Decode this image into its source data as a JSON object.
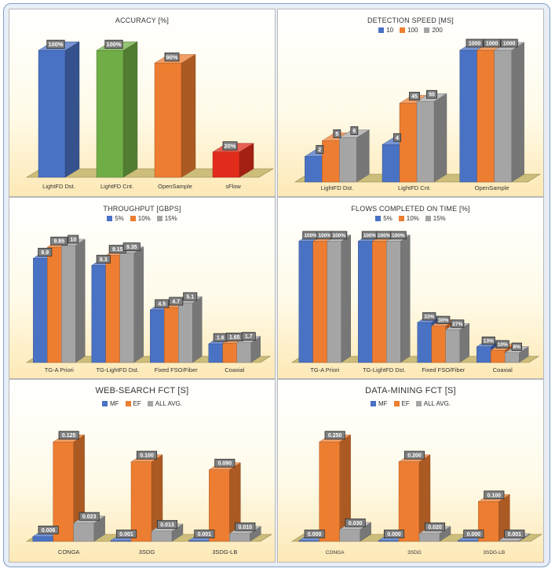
{
  "colors": {
    "blue": "#4a72c4",
    "orange": "#ed7d31",
    "gray": "#a5a5a5",
    "green": "#70ad47",
    "red": "#e22c1b"
  },
  "chart_data": [
    {
      "id": "accuracy",
      "type": "bar",
      "title": "ACCURACY [%]",
      "categories": [
        "LightFD Dst.",
        "LightFD Cnt.",
        "OpenSample",
        "sFlow"
      ],
      "values": [
        100,
        100,
        90,
        20
      ],
      "labels": [
        "100%",
        "100%",
        "90%",
        "20%"
      ],
      "bar_colors": [
        "blue",
        "green",
        "orange",
        "red"
      ],
      "ylim": [
        0,
        110
      ],
      "legend": []
    },
    {
      "id": "detection-speed",
      "type": "bar",
      "title": "DETECTION SPEED [MS]",
      "categories": [
        "LightFD Dst.",
        "LightFD Cnt.",
        "OpenSample"
      ],
      "series": [
        {
          "name": "10",
          "values": [
            2,
            4,
            1000
          ],
          "labels": [
            "2",
            "4",
            "1000"
          ]
        },
        {
          "name": "100",
          "values": [
            5,
            45,
            1000
          ],
          "labels": [
            "5",
            "45",
            "1000"
          ]
        },
        {
          "name": "200",
          "values": [
            6,
            50,
            1000
          ],
          "labels": [
            "6",
            "50",
            "1000"
          ]
        }
      ],
      "scale": "log",
      "legend_position": "top"
    },
    {
      "id": "throughput",
      "type": "bar",
      "title": "THROUGHPUT [GBPS]",
      "categories": [
        "TG-A Priori",
        "TG-LightFD Dst.",
        "Fixed FSO/Fiber",
        "Coaxial"
      ],
      "series": [
        {
          "name": "5%",
          "values": [
            8.9,
            8.3,
            4.5,
            1.6
          ],
          "labels": [
            "8.9",
            "8.3",
            "4.5",
            "1.6"
          ]
        },
        {
          "name": "10%",
          "values": [
            9.85,
            9.15,
            4.7,
            1.65
          ],
          "labels": [
            "9.85",
            "9.15",
            "4.7",
            "1.65"
          ]
        },
        {
          "name": "15%",
          "values": [
            10,
            9.35,
            5.1,
            1.7
          ],
          "labels": [
            "10",
            "9.35",
            "5.1",
            "1.7"
          ]
        }
      ],
      "ylim": [
        0,
        11
      ],
      "legend_position": "top"
    },
    {
      "id": "flows-completed",
      "type": "bar",
      "title": "FLOWS COMPLETED ON TIME [%]",
      "categories": [
        "TG-A Priori",
        "TG-LightFD Dst.",
        "Fixed FSO/Fiber",
        "Coaxial"
      ],
      "series": [
        {
          "name": "5%",
          "values": [
            100,
            100,
            33,
            13
          ],
          "labels": [
            "100%",
            "100%",
            "33%",
            "13%"
          ]
        },
        {
          "name": "10%",
          "values": [
            100,
            100,
            30,
            10
          ],
          "labels": [
            "100%",
            "100%",
            "30%",
            "10%"
          ]
        },
        {
          "name": "15%",
          "values": [
            100,
            100,
            27,
            8
          ],
          "labels": [
            "100%",
            "100%",
            "27%",
            "8%"
          ]
        }
      ],
      "ylim": [
        0,
        110
      ],
      "legend_position": "top"
    },
    {
      "id": "web-search-fct",
      "type": "bar",
      "title": "WEB-SEARCH FCT [S]",
      "categories": [
        "CONGA",
        "3SDG",
        "3SDG-LB"
      ],
      "series": [
        {
          "name": "MF",
          "values": [
            0.006,
            0.001,
            0.001
          ],
          "labels": [
            "0.006",
            "0.001",
            "0.001"
          ]
        },
        {
          "name": "EF",
          "values": [
            0.125,
            0.1,
            0.09
          ],
          "labels": [
            "0.125",
            "0.100",
            "0.090"
          ]
        },
        {
          "name": "ALL AVG.",
          "values": [
            0.023,
            0.013,
            0.01
          ],
          "labels": [
            "0.023",
            "0.013",
            "0.010"
          ]
        }
      ],
      "ylim": [
        0,
        0.14
      ],
      "legend_position": "top"
    },
    {
      "id": "data-mining-fct",
      "type": "bar",
      "title": "DATA-MINING FCT [S]",
      "categories": [
        "CONGA",
        "3SDG",
        "3SDG-LB"
      ],
      "series": [
        {
          "name": "MF",
          "values": [
            0.0,
            0.0,
            0.0
          ],
          "labels": [
            "0.000",
            "0.000",
            "0.000"
          ]
        },
        {
          "name": "EF",
          "values": [
            0.25,
            0.2,
            0.1
          ],
          "labels": [
            "0.250",
            "0.200",
            "0.100"
          ]
        },
        {
          "name": "ALL AVG.",
          "values": [
            0.03,
            0.02,
            0.001
          ],
          "labels": [
            "0.030",
            "0.020",
            "0.001"
          ]
        }
      ],
      "ylim": [
        0,
        0.28
      ],
      "legend_position": "top"
    }
  ]
}
